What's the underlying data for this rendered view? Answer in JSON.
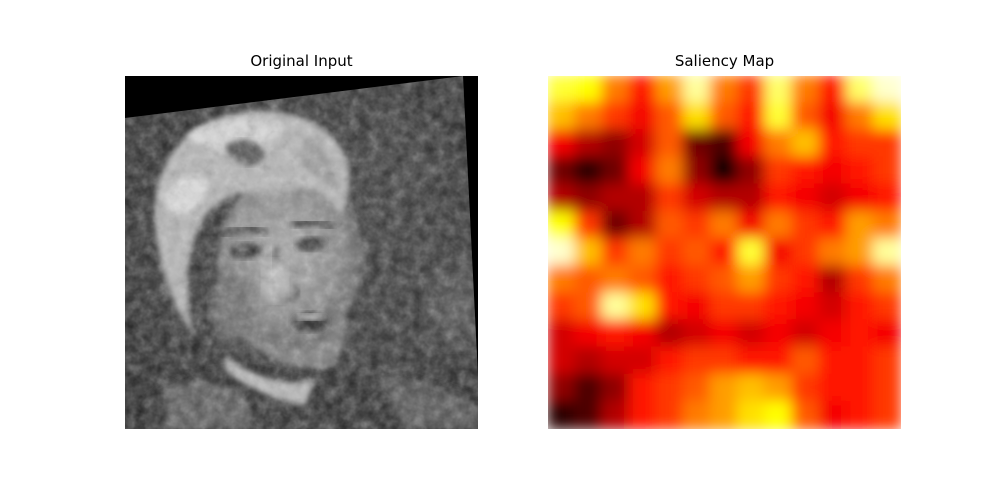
{
  "figure": {
    "panels": [
      {
        "title": "Original Input",
        "colormap": "gray"
      },
      {
        "title": "Saliency Map",
        "colormap": "hot"
      }
    ]
  }
}
